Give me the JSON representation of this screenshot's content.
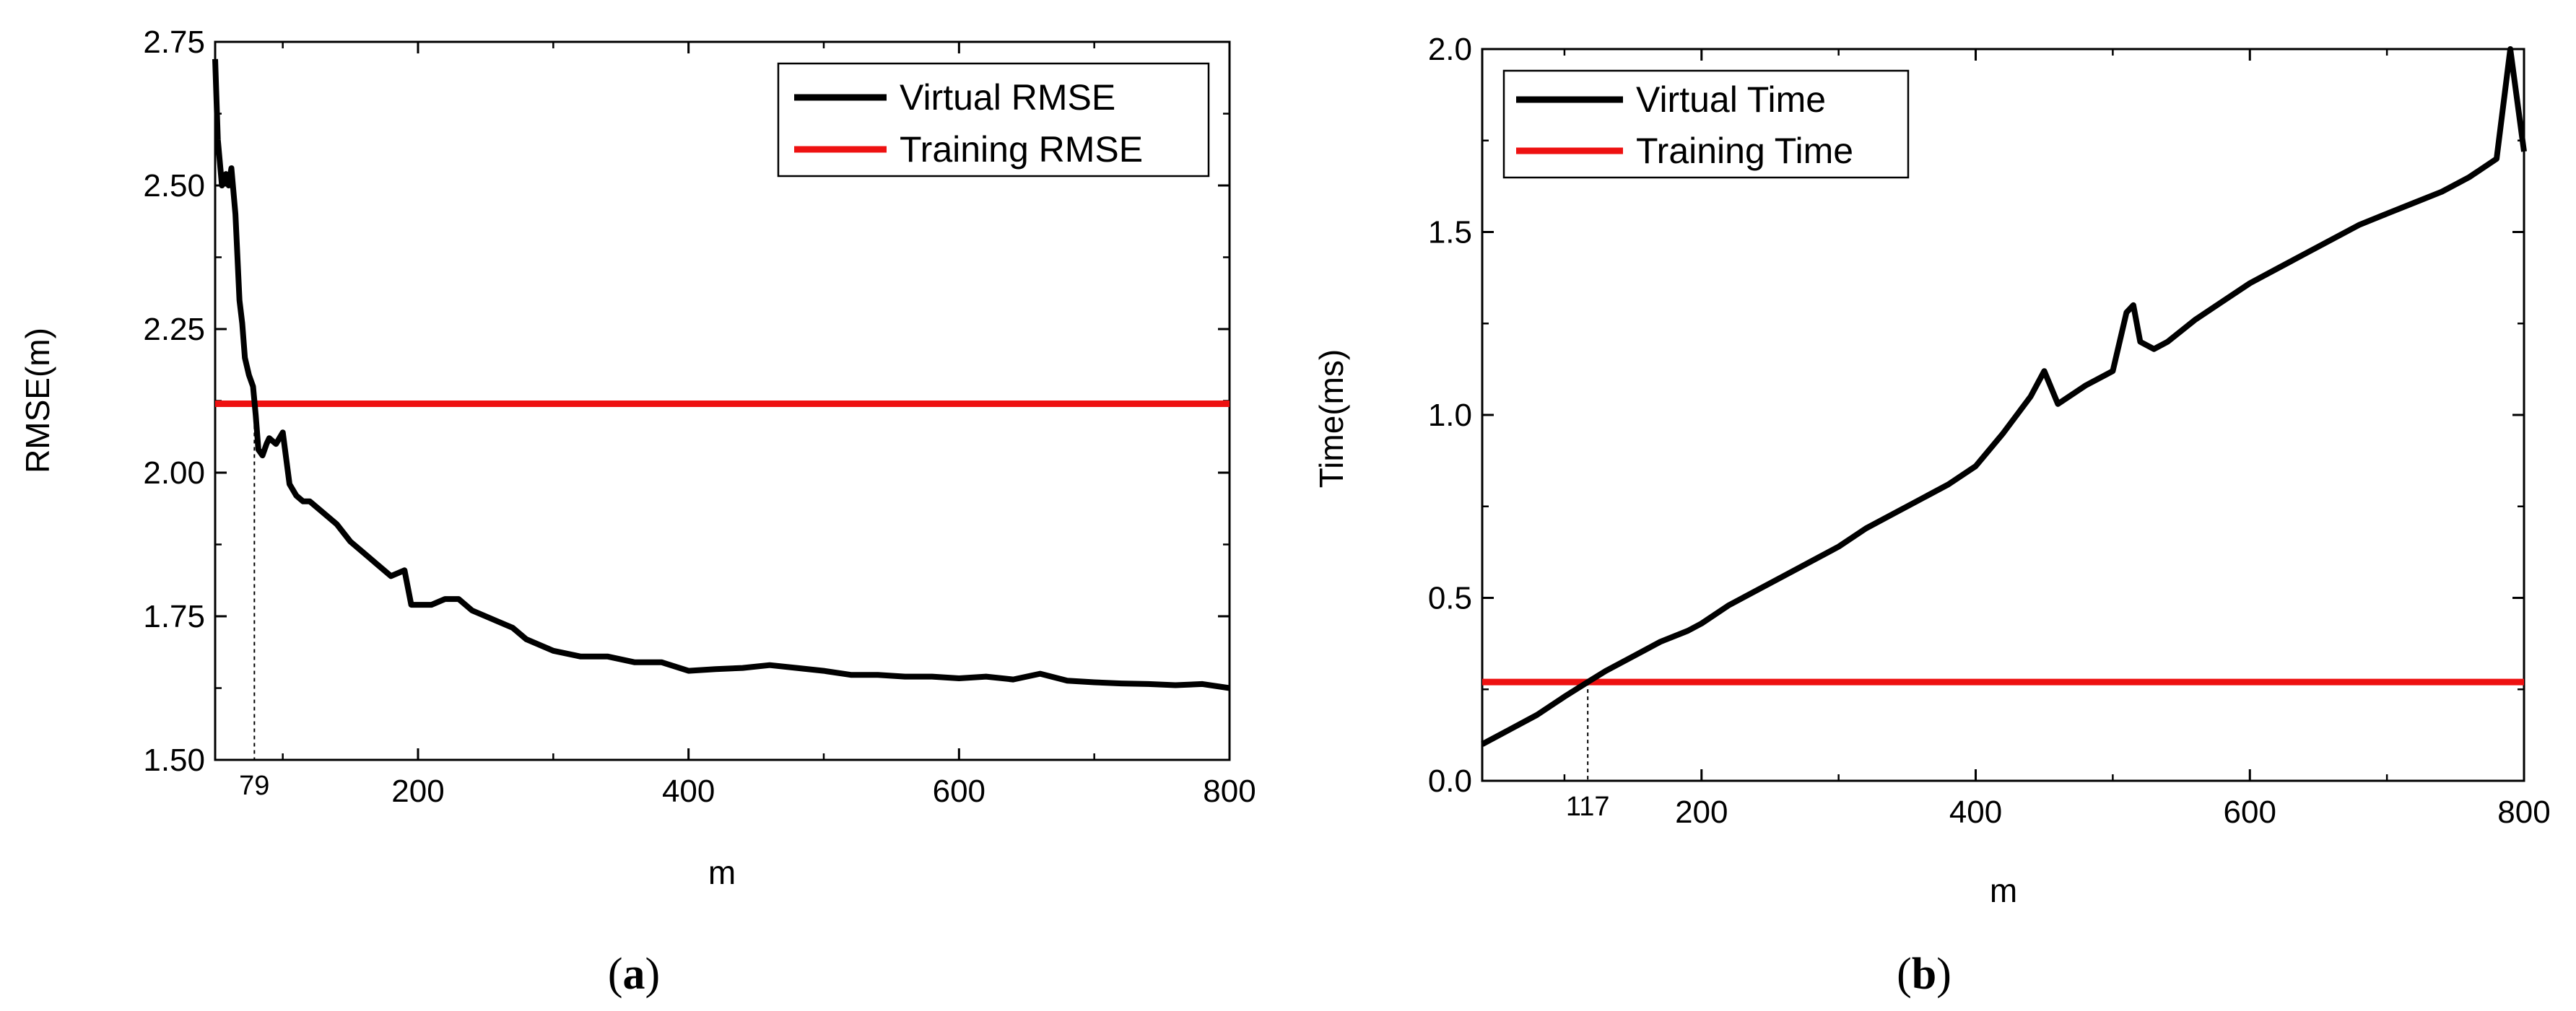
{
  "chart_data": [
    {
      "type": "line",
      "panel_label": "a",
      "xlabel": "m",
      "ylabel": "RMSE(m)",
      "xlim": [
        50,
        800
      ],
      "ylim": [
        1.5,
        2.75
      ],
      "xticks": [
        200,
        400,
        600,
        800
      ],
      "yticks": [
        1.5,
        1.75,
        2.0,
        2.25,
        2.5,
        2.75
      ],
      "ytick_labels": [
        "1.50",
        "1.75",
        "2.00",
        "2.25",
        "2.50",
        "2.75"
      ],
      "legend_position": "top-right",
      "annotation": {
        "x": 79,
        "label": "79"
      },
      "series": [
        {
          "name": "Virtual RMSE",
          "color": "#000000",
          "x": [
            50,
            52,
            55,
            58,
            60,
            62,
            65,
            68,
            70,
            72,
            75,
            78,
            80,
            82,
            85,
            88,
            90,
            95,
            100,
            105,
            110,
            115,
            120,
            130,
            140,
            150,
            160,
            170,
            180,
            190,
            195,
            200,
            210,
            220,
            230,
            240,
            250,
            260,
            270,
            280,
            290,
            300,
            320,
            340,
            360,
            380,
            400,
            420,
            440,
            460,
            480,
            500,
            520,
            540,
            560,
            580,
            600,
            620,
            640,
            660,
            680,
            700,
            720,
            740,
            760,
            780,
            800
          ],
          "values": [
            2.72,
            2.58,
            2.5,
            2.52,
            2.5,
            2.53,
            2.45,
            2.3,
            2.26,
            2.2,
            2.17,
            2.15,
            2.1,
            2.04,
            2.03,
            2.05,
            2.06,
            2.05,
            2.07,
            1.98,
            1.96,
            1.95,
            1.95,
            1.93,
            1.91,
            1.88,
            1.86,
            1.84,
            1.82,
            1.83,
            1.77,
            1.77,
            1.77,
            1.78,
            1.78,
            1.76,
            1.75,
            1.74,
            1.73,
            1.71,
            1.7,
            1.69,
            1.68,
            1.68,
            1.67,
            1.67,
            1.655,
            1.658,
            1.66,
            1.665,
            1.66,
            1.655,
            1.648,
            1.648,
            1.645,
            1.645,
            1.642,
            1.645,
            1.64,
            1.65,
            1.638,
            1.635,
            1.633,
            1.632,
            1.63,
            1.632,
            1.625
          ]
        },
        {
          "name": "Training RMSE",
          "color": "#ee1111",
          "x": [
            50,
            800
          ],
          "values": [
            2.12,
            2.12
          ]
        }
      ]
    },
    {
      "type": "line",
      "panel_label": "b",
      "xlabel": "m",
      "ylabel": "Time(ms)",
      "xlim": [
        40,
        800
      ],
      "ylim": [
        0.0,
        2.0
      ],
      "xticks": [
        200,
        400,
        600,
        800
      ],
      "yticks": [
        0.0,
        0.5,
        1.0,
        1.5,
        2.0
      ],
      "ytick_labels": [
        "0.0",
        "0.5",
        "1.0",
        "1.5",
        "2.0"
      ],
      "legend_position": "top-left",
      "annotation": {
        "x": 117,
        "label": "117"
      },
      "series": [
        {
          "name": "Virtual Time",
          "color": "#000000",
          "x": [
            40,
            60,
            80,
            100,
            117,
            130,
            150,
            170,
            190,
            200,
            220,
            240,
            260,
            280,
            300,
            320,
            340,
            360,
            380,
            400,
            420,
            440,
            450,
            460,
            480,
            500,
            510,
            515,
            520,
            530,
            540,
            560,
            580,
            600,
            620,
            640,
            660,
            680,
            700,
            720,
            740,
            760,
            780,
            790,
            800
          ],
          "values": [
            0.1,
            0.14,
            0.18,
            0.23,
            0.27,
            0.3,
            0.34,
            0.38,
            0.41,
            0.43,
            0.48,
            0.52,
            0.56,
            0.6,
            0.64,
            0.69,
            0.73,
            0.77,
            0.81,
            0.86,
            0.95,
            1.05,
            1.12,
            1.03,
            1.08,
            1.12,
            1.28,
            1.3,
            1.2,
            1.18,
            1.2,
            1.26,
            1.31,
            1.36,
            1.4,
            1.44,
            1.48,
            1.52,
            1.55,
            1.58,
            1.61,
            1.65,
            1.7,
            2.0,
            1.72
          ]
        },
        {
          "name": "Training Time",
          "color": "#ee1111",
          "x": [
            40,
            800
          ],
          "values": [
            0.27,
            0.27
          ]
        }
      ]
    }
  ]
}
